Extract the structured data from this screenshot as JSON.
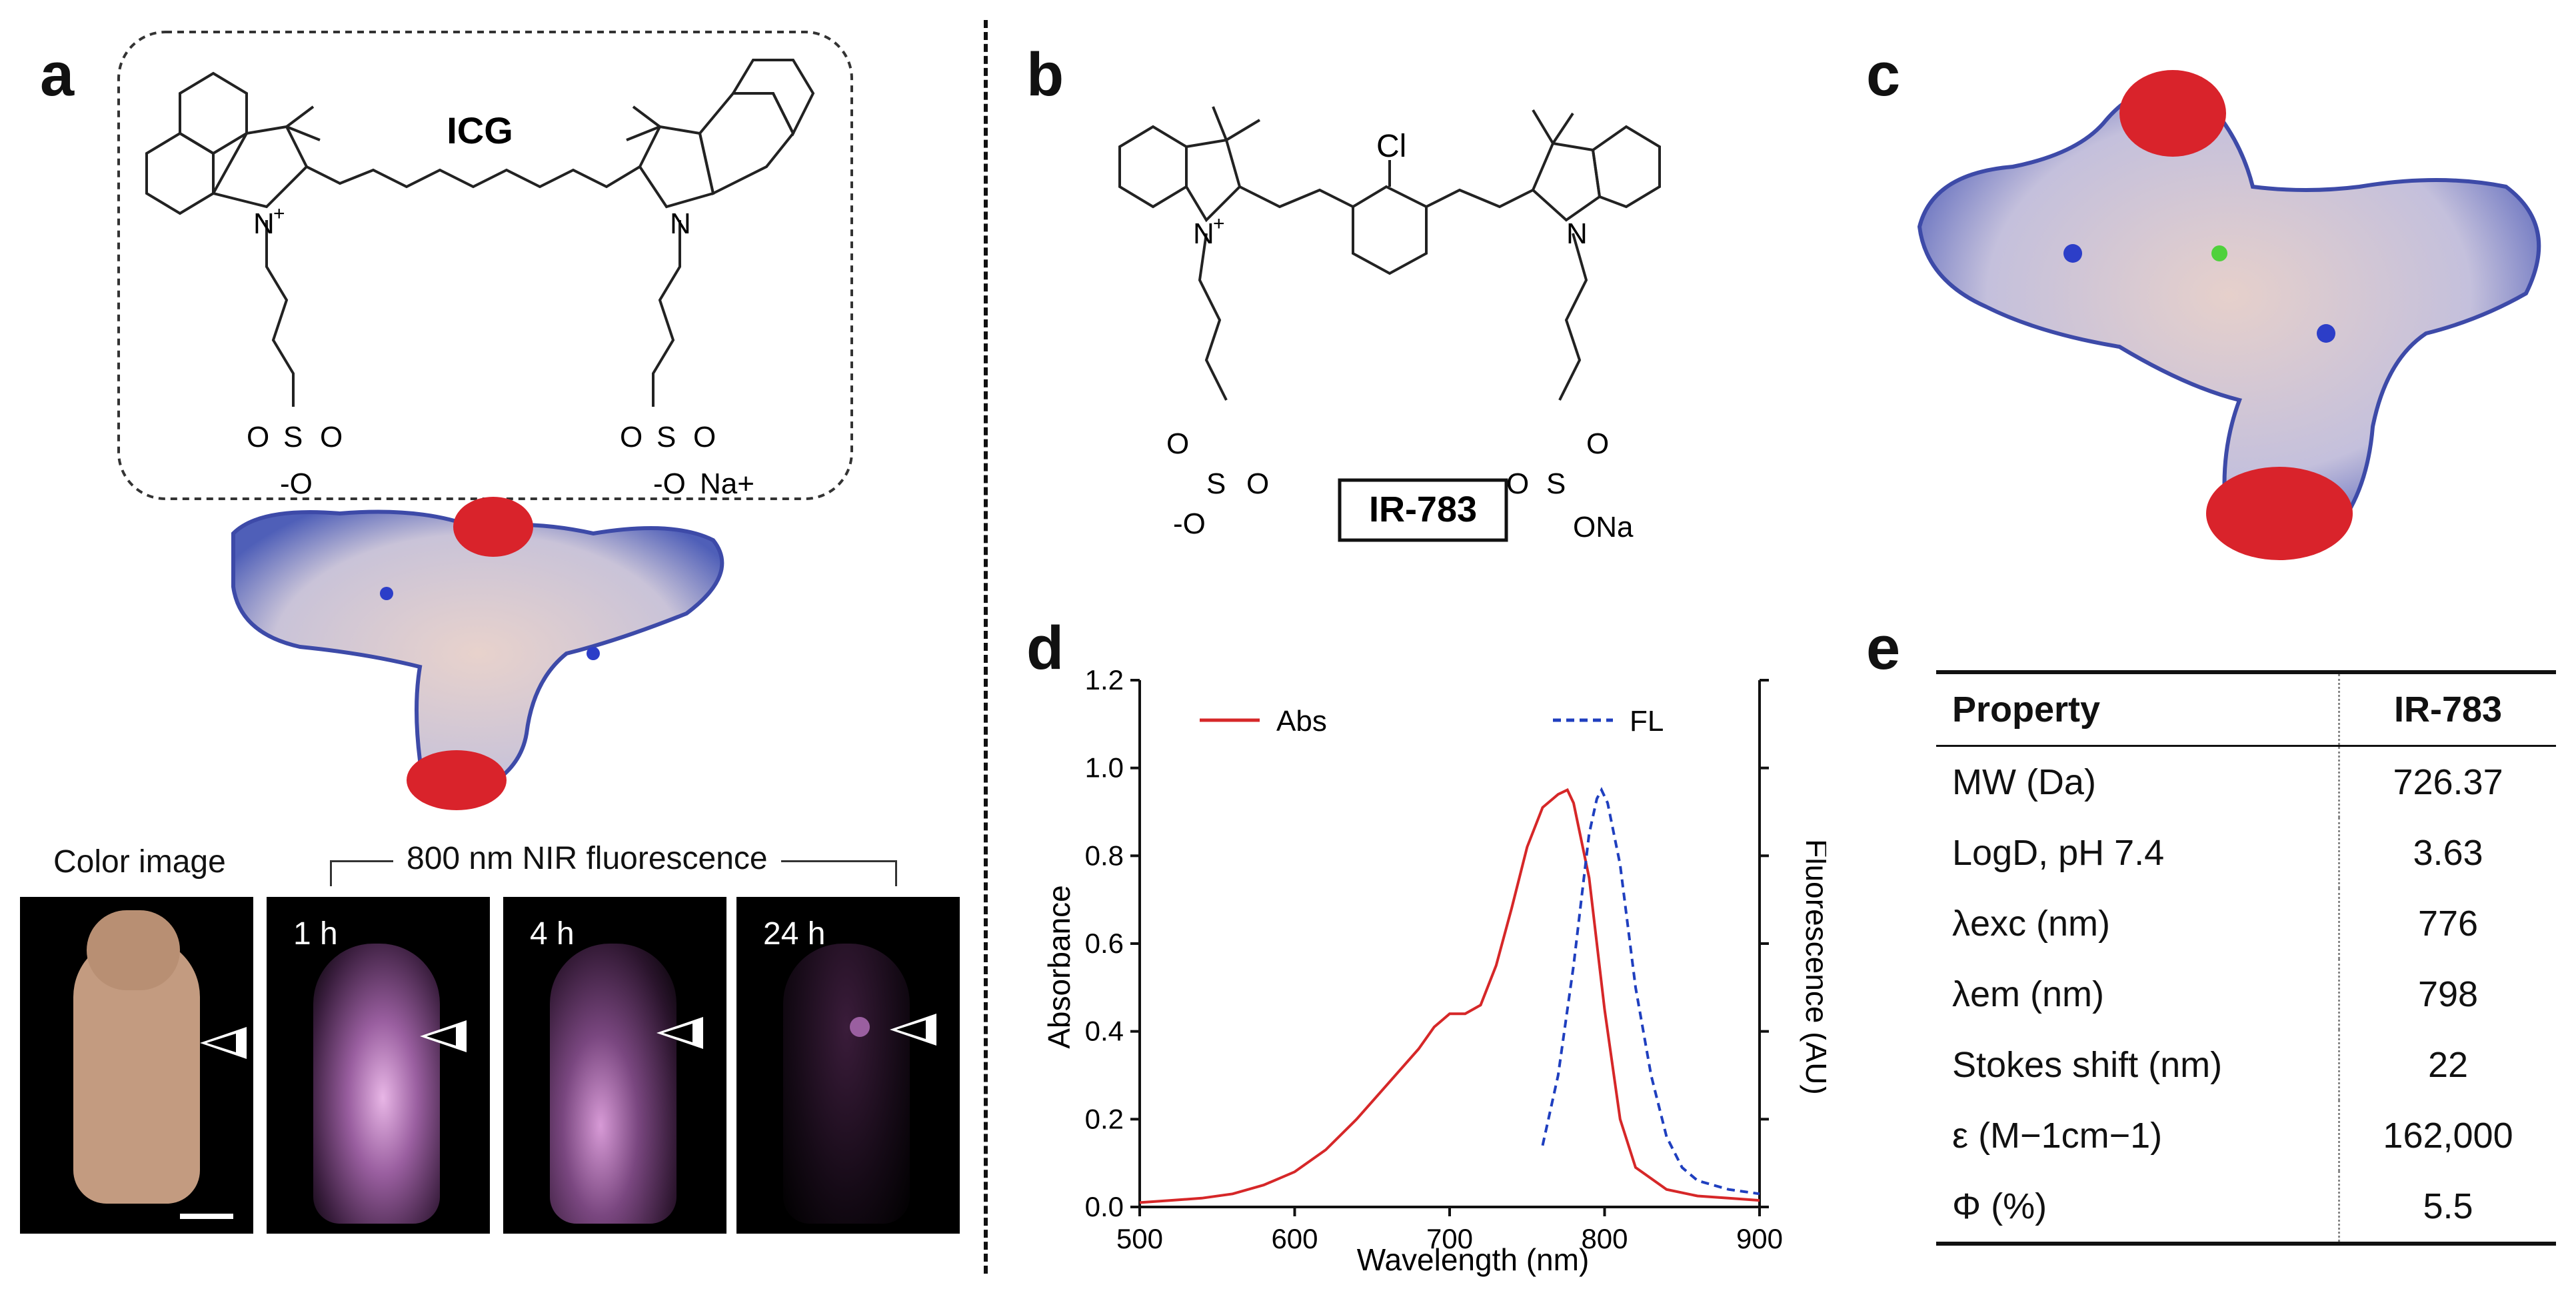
{
  "panels": {
    "a": "a",
    "b": "b",
    "c": "c",
    "d": "d",
    "e": "e"
  },
  "icg": {
    "name": "ICG",
    "n_plus": "N",
    "plus": "+",
    "n": "N",
    "so3_left": "O",
    "s_left": "S",
    "o_left_a": "O",
    "o_left_b": "-O",
    "so3_right": "O",
    "s_right": "S",
    "o_right_a": "O",
    "o_right_b": "-O",
    "na": "Na+"
  },
  "ir783": {
    "name": "IR-783",
    "cl": "Cl",
    "n_plus": "N",
    "plus": "+",
    "n": "N",
    "o1": "O",
    "s1": "S",
    "o2": "O",
    "o3": "-O",
    "o4": "O",
    "s2": "S",
    "o5": "O",
    "ona": "ONa"
  },
  "imaging": {
    "color_label": "Color image",
    "nir_label": "800 nm NIR fluorescence",
    "times": [
      "1 h",
      "4 h",
      "24 h"
    ]
  },
  "chart_data": {
    "type": "line",
    "xlabel": "Wavelength (nm)",
    "ylabel": "Absorbance",
    "y2label": "Fluorescence (AU)",
    "xlim": [
      500,
      900
    ],
    "ylim": [
      0,
      1.2
    ],
    "xticks": [
      "500",
      "600",
      "700",
      "800",
      "900"
    ],
    "yticks": [
      "0.0",
      "0.2",
      "0.4",
      "0.6",
      "0.8",
      "1.0",
      "1.2"
    ],
    "legend": [
      "Abs",
      "FL"
    ],
    "series": [
      {
        "name": "Abs",
        "color": "#d62728",
        "style": "solid",
        "x": [
          500,
          520,
          540,
          560,
          580,
          600,
          620,
          640,
          660,
          680,
          690,
          700,
          710,
          720,
          730,
          740,
          750,
          760,
          770,
          776,
          780,
          790,
          800,
          810,
          820,
          840,
          860,
          880,
          900
        ],
        "y": [
          0.01,
          0.015,
          0.02,
          0.03,
          0.05,
          0.08,
          0.13,
          0.2,
          0.28,
          0.36,
          0.41,
          0.44,
          0.44,
          0.46,
          0.55,
          0.68,
          0.82,
          0.91,
          0.94,
          0.95,
          0.92,
          0.75,
          0.45,
          0.2,
          0.09,
          0.04,
          0.025,
          0.02,
          0.015
        ]
      },
      {
        "name": "FL",
        "color": "#1f3fbf",
        "style": "dashed",
        "x": [
          760,
          770,
          780,
          785,
          790,
          795,
          798,
          802,
          810,
          820,
          830,
          840,
          850,
          860,
          870,
          880,
          890,
          900
        ],
        "y": [
          0.14,
          0.3,
          0.55,
          0.7,
          0.85,
          0.93,
          0.95,
          0.92,
          0.78,
          0.5,
          0.3,
          0.16,
          0.09,
          0.06,
          0.05,
          0.04,
          0.035,
          0.03
        ]
      }
    ]
  },
  "table": {
    "header": [
      "Property",
      "IR-783"
    ],
    "rows": [
      [
        "MW (Da)",
        "726.37"
      ],
      [
        "LogD, pH 7.4",
        "3.63"
      ],
      [
        "λexc (nm)",
        "776"
      ],
      [
        "λem (nm)",
        "798"
      ],
      [
        "Stokes shift (nm)",
        "22"
      ],
      [
        "ε (M−1cm−1)",
        "162,000"
      ],
      [
        "Φ (%)",
        "5.5"
      ]
    ]
  },
  "colors": {
    "abs": "#d62728",
    "fl": "#1f3fbf",
    "surface_red": "#d9232b",
    "surface_blue": "#3a4fb5"
  }
}
